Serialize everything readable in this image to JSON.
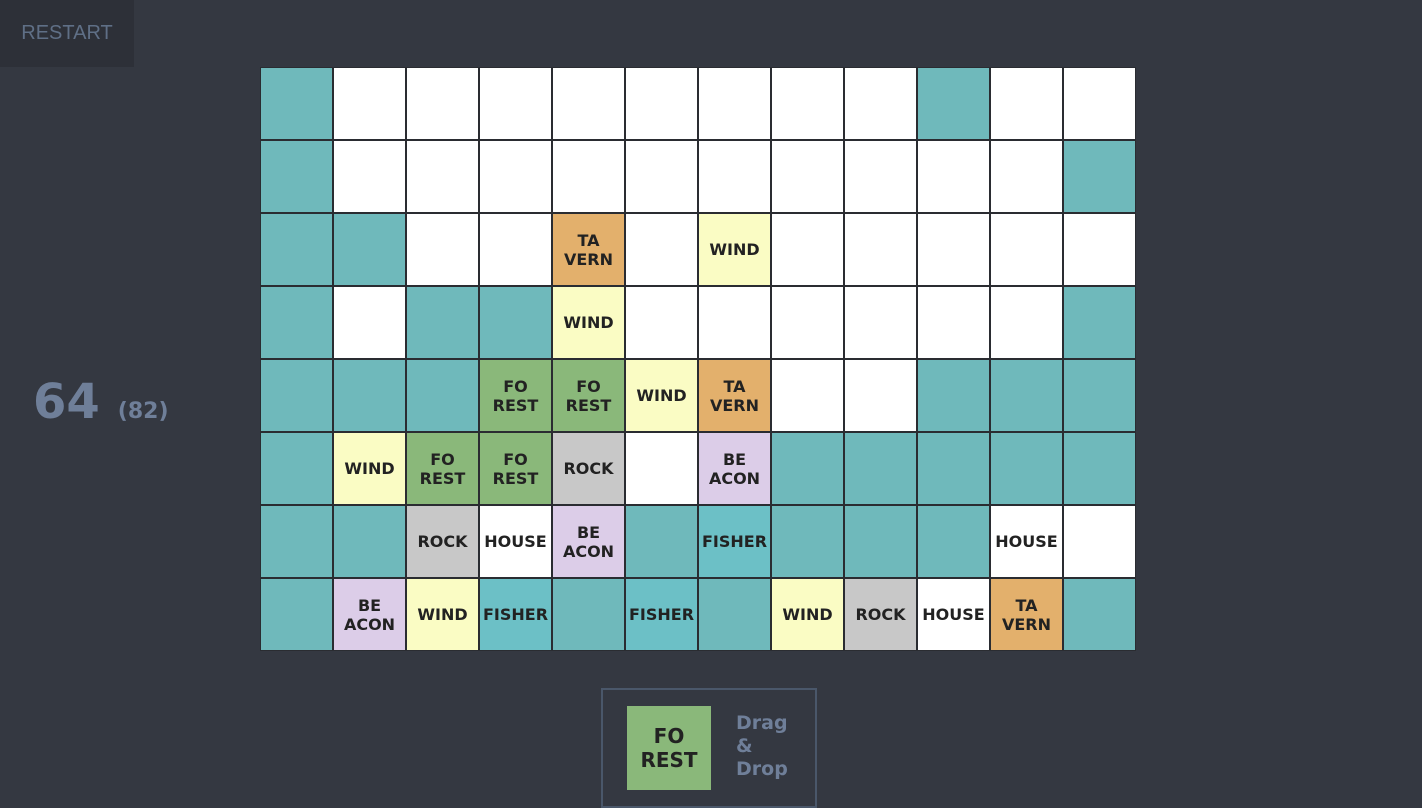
{
  "restart_label": "RESTART",
  "score": {
    "current": "64",
    "best": "(82)"
  },
  "tiles": {
    "W": {
      "lines": [],
      "color": "#6fb9bb"
    },
    "E": {
      "lines": [],
      "color": "#ffffff"
    },
    "T": {
      "lines": [
        "TA",
        "VERN"
      ],
      "color": "#e3b06c"
    },
    "N": {
      "lines": [
        "WIND"
      ],
      "color": "#fafcc4"
    },
    "F": {
      "lines": [
        "FO",
        "REST"
      ],
      "color": "#8ab87a"
    },
    "R": {
      "lines": [
        "ROCK"
      ],
      "color": "#c8c8c8"
    },
    "B": {
      "lines": [
        "BE",
        "ACON"
      ],
      "color": "#dccde8"
    },
    "S": {
      "lines": [
        "FISHER"
      ],
      "color": "#6cc0c6"
    },
    "H": {
      "lines": [
        "HOUSE"
      ],
      "color": "#ffffff"
    }
  },
  "grid": [
    "WEEEEEEEEWEE",
    "WEEEEEEEEEEW",
    "WWEETENEEEEE",
    "WEWWNEEEEEEW",
    "WWWFFNTEEWWW",
    "WNFFREBWWWWW",
    "WWRHBWSWWWHE",
    "WBNSWSWNRHTW"
  ],
  "next_piece": {
    "lines": [
      "FO",
      "REST"
    ]
  },
  "hint": [
    "Drag",
    "&",
    "Drop"
  ]
}
